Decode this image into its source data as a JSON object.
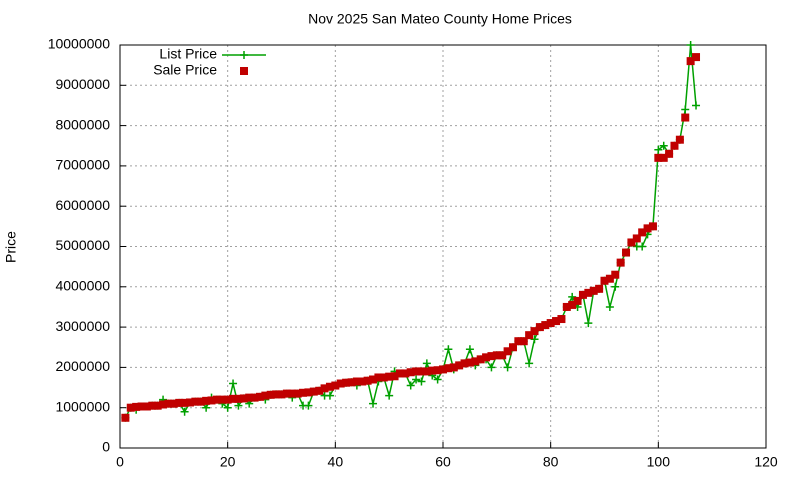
{
  "chart_data": {
    "type": "line",
    "title": "Nov 2025 San Mateo County Home Prices",
    "y_label": "Price",
    "x": [
      1,
      2,
      3,
      4,
      5,
      6,
      7,
      8,
      9,
      10,
      11,
      12,
      13,
      14,
      15,
      16,
      17,
      18,
      19,
      20,
      21,
      22,
      23,
      24,
      25,
      26,
      27,
      28,
      29,
      30,
      31,
      32,
      33,
      34,
      35,
      36,
      37,
      38,
      39,
      40,
      41,
      42,
      43,
      44,
      45,
      46,
      47,
      48,
      49,
      50,
      51,
      52,
      53,
      54,
      55,
      56,
      57,
      58,
      59,
      60,
      61,
      62,
      63,
      64,
      65,
      66,
      67,
      68,
      69,
      70,
      71,
      72,
      73,
      74,
      75,
      76,
      77,
      78,
      79,
      80,
      81,
      82,
      83,
      84,
      85,
      86,
      87,
      88,
      89,
      90,
      91,
      92,
      93,
      94,
      95,
      96,
      97,
      98,
      99,
      100,
      101,
      102,
      103,
      104,
      105,
      106,
      107
    ],
    "series": [
      {
        "name": "List Price",
        "color": "#00a000",
        "style": "linespoints",
        "values": [
          750000,
          1000000,
          950000,
          1030000,
          1030000,
          1050000,
          1050000,
          1200000,
          1100000,
          1100000,
          1120000,
          900000,
          1130000,
          1150000,
          1150000,
          1000000,
          1250000,
          1200000,
          1100000,
          1000000,
          1600000,
          1050000,
          1230000,
          1100000,
          1250000,
          1270000,
          1200000,
          1320000,
          1330000,
          1330000,
          1350000,
          1250000,
          1350000,
          1050000,
          1050000,
          1400000,
          1420000,
          1300000,
          1300000,
          1550000,
          1600000,
          1620000,
          1630000,
          1550000,
          1650000,
          1670000,
          1100000,
          1650000,
          1750000,
          1300000,
          1900000,
          1850000,
          1850000,
          1550000,
          1700000,
          1650000,
          2100000,
          1800000,
          1700000,
          1950000,
          2450000,
          1950000,
          2050000,
          2100000,
          2450000,
          2050000,
          2200000,
          2200000,
          2000000,
          2300000,
          2300000,
          2000000,
          2500000,
          2650000,
          2650000,
          2100000,
          2700000,
          3000000,
          3050000,
          3100000,
          3150000,
          3200000,
          3500000,
          3750000,
          3500000,
          3800000,
          3100000,
          3900000,
          3950000,
          4150000,
          3500000,
          4000000,
          4600000,
          4850000,
          5100000,
          5000000,
          5000000,
          5300000,
          5500000,
          7400000,
          7500000,
          7300000,
          7500000,
          7650000,
          8400000,
          10000000,
          8500000
        ]
      },
      {
        "name": "Sale Price",
        "color": "#c00000",
        "style": "points",
        "values": [
          750000,
          1000000,
          1020000,
          1030000,
          1030000,
          1050000,
          1050000,
          1080000,
          1100000,
          1100000,
          1120000,
          1120000,
          1130000,
          1150000,
          1150000,
          1170000,
          1180000,
          1200000,
          1200000,
          1200000,
          1220000,
          1220000,
          1230000,
          1250000,
          1250000,
          1270000,
          1300000,
          1320000,
          1330000,
          1330000,
          1350000,
          1350000,
          1350000,
          1370000,
          1380000,
          1400000,
          1420000,
          1480000,
          1520000,
          1550000,
          1600000,
          1620000,
          1630000,
          1650000,
          1650000,
          1670000,
          1700000,
          1750000,
          1750000,
          1770000,
          1780000,
          1850000,
          1850000,
          1880000,
          1900000,
          1900000,
          1900000,
          1920000,
          1930000,
          1950000,
          1980000,
          2000000,
          2050000,
          2100000,
          2120000,
          2150000,
          2200000,
          2250000,
          2280000,
          2300000,
          2300000,
          2400000,
          2500000,
          2650000,
          2650000,
          2800000,
          2900000,
          3000000,
          3050000,
          3100000,
          3150000,
          3200000,
          3500000,
          3550000,
          3650000,
          3800000,
          3850000,
          3900000,
          3950000,
          4150000,
          4200000,
          4300000,
          4600000,
          4850000,
          5100000,
          5200000,
          5350000,
          5450000,
          5500000,
          7200000,
          7200000,
          7300000,
          7500000,
          7650000,
          8200000,
          9600000,
          9700000
        ]
      }
    ],
    "xlim": [
      0,
      120
    ],
    "xticks": [
      0,
      20,
      40,
      60,
      80,
      100,
      120
    ],
    "ylim": [
      0,
      10000000
    ],
    "yticks": [
      0,
      1000000,
      2000000,
      3000000,
      4000000,
      5000000,
      6000000,
      7000000,
      8000000,
      9000000,
      10000000
    ],
    "grid": true,
    "legend": "top-left"
  }
}
